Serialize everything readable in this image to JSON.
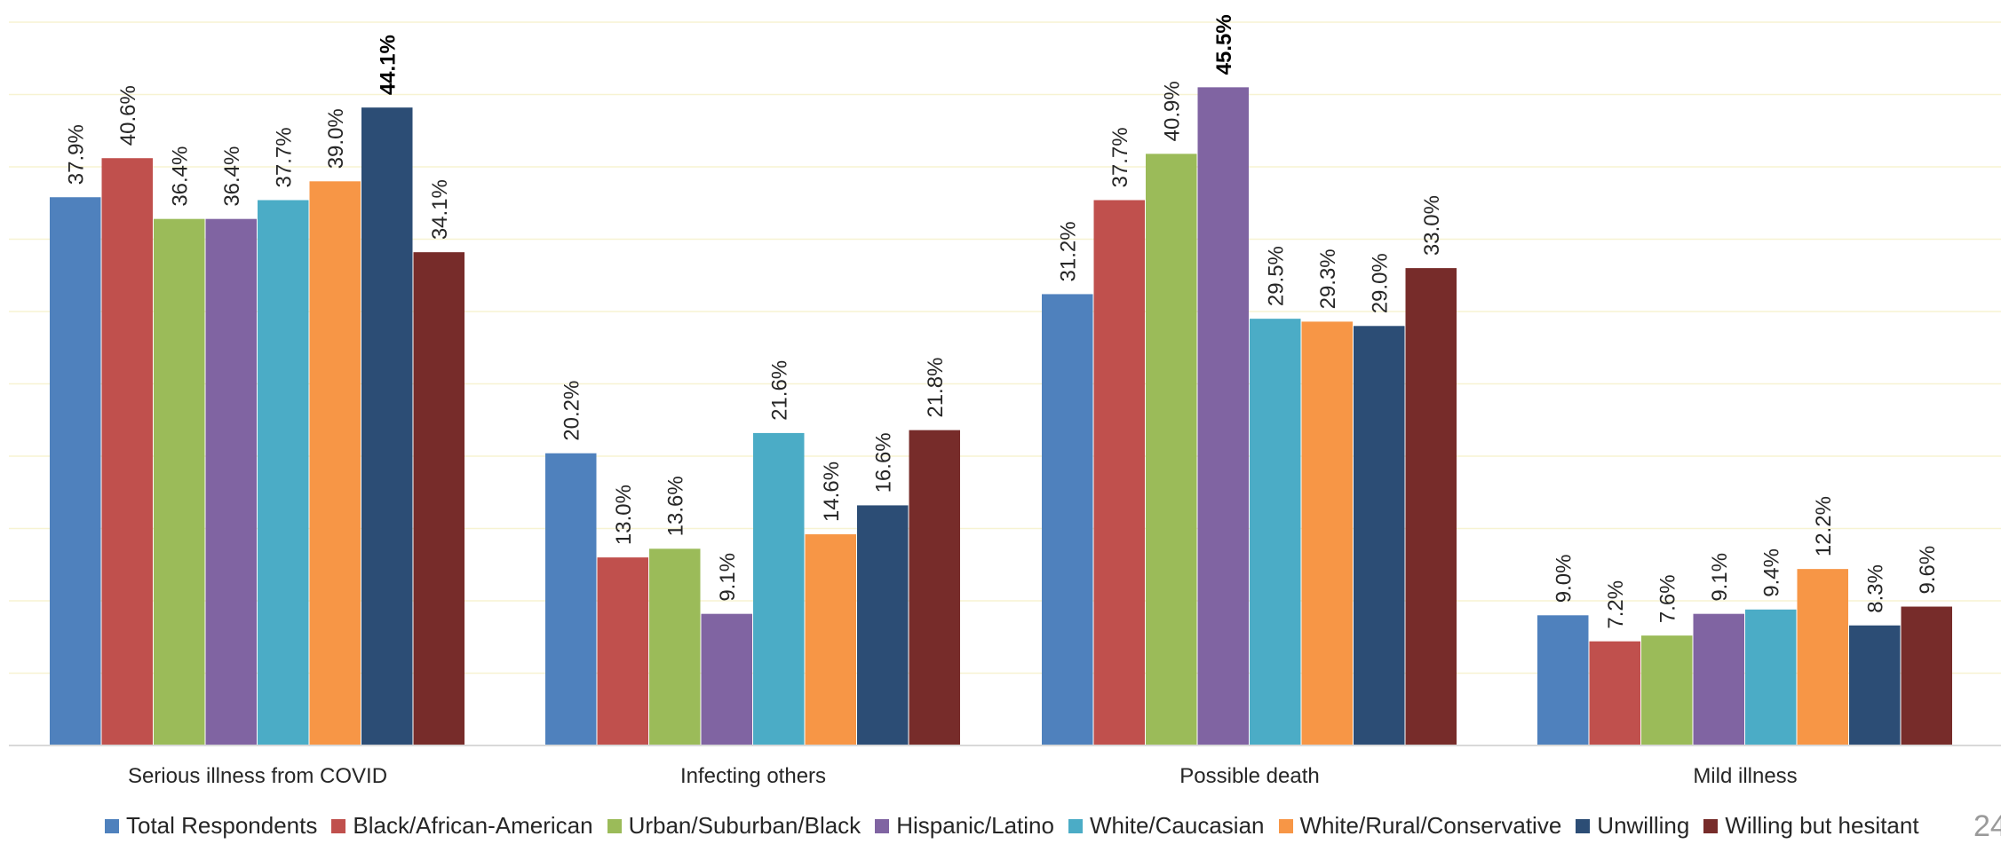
{
  "chart_data": {
    "type": "bar",
    "categories": [
      "Serious illness from COVID",
      "Infecting others",
      "Possible death",
      "Mild illness"
    ],
    "series": [
      {
        "name": "Total Respondents",
        "color": "#4F81BD",
        "values": [
          37.9,
          20.2,
          31.2,
          9.0
        ],
        "labels": [
          "37.9%",
          "20.2%",
          "31.2%",
          "9.0%"
        ]
      },
      {
        "name": "Black/African-American",
        "color": "#C0504D",
        "values": [
          40.6,
          13.0,
          37.7,
          7.2
        ],
        "labels": [
          "40.6%",
          "13.0%",
          "37.7%",
          "7.2%"
        ]
      },
      {
        "name": "Urban/Suburban/Black",
        "color": "#9BBB59",
        "values": [
          36.4,
          13.6,
          40.9,
          7.6
        ],
        "labels": [
          "36.4%",
          "13.6%",
          "40.9%",
          "7.6%"
        ]
      },
      {
        "name": "Hispanic/Latino",
        "color": "#8064A2",
        "values": [
          36.4,
          9.1,
          45.5,
          9.1
        ],
        "labels": [
          "36.4%",
          "9.1%",
          "45.5%",
          "9.1%"
        ]
      },
      {
        "name": "White/Caucasian",
        "color": "#4BACC6",
        "values": [
          37.7,
          21.6,
          29.5,
          9.4
        ],
        "labels": [
          "37.7%",
          "21.6%",
          "29.5%",
          "9.4%"
        ]
      },
      {
        "name": "White/Rural/Conservative",
        "color": "#F79646",
        "values": [
          39.0,
          14.6,
          29.3,
          12.2
        ],
        "labels": [
          "39.0%",
          "14.6%",
          "29.3%",
          "12.2%"
        ]
      },
      {
        "name": "Unwilling",
        "color": "#2C4D75",
        "values": [
          44.1,
          16.6,
          29.0,
          8.3
        ],
        "labels": [
          "44.1%",
          "16.6%",
          "29.0%",
          "8.3%"
        ]
      },
      {
        "name": "Willing but hesitant",
        "color": "#772C2A",
        "values": [
          34.1,
          21.8,
          33.0,
          9.6
        ],
        "labels": [
          "34.1%",
          "21.8%",
          "33.0%",
          "9.6%"
        ]
      }
    ],
    "bold_labels": [
      "44.1%",
      "45.5%"
    ],
    "ylim": [
      0,
      50
    ],
    "grid": true,
    "legend_position": "bottom",
    "title": "",
    "xlabel": "",
    "ylabel": ""
  },
  "page_number": "24"
}
